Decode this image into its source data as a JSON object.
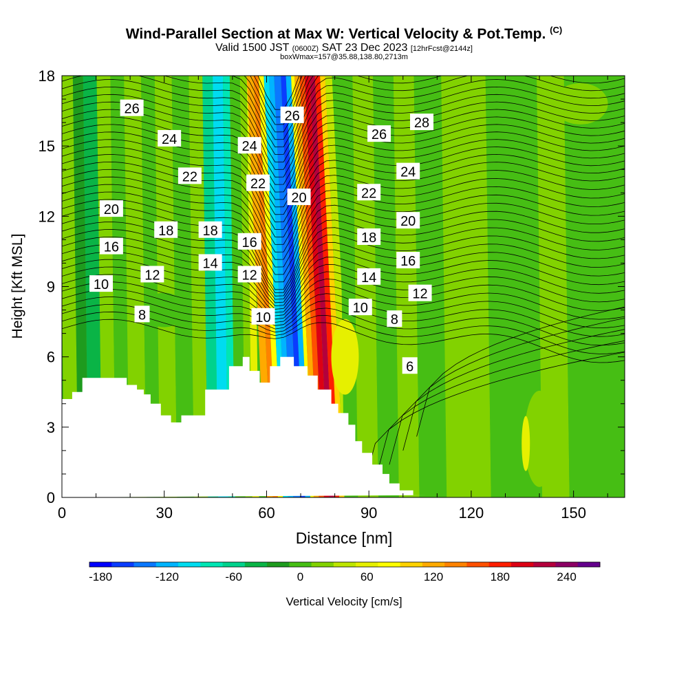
{
  "title": {
    "main": "Wind-Parallel Section at Max W: Vertical Velocity & Pot.Temp.",
    "copyright": "(C)",
    "valid_prefix": "Valid 1500 JST",
    "valid_utc": "(0600Z)",
    "valid_date": "SAT 23 Dec 2023",
    "forecast": "[12hrFcst@2144z]",
    "box_info": "boxWmax=157@35.88,138.80,2713m"
  },
  "colorbar": {
    "label": "Vertical Velocity [cm/s]",
    "tick_labels": [
      "-180",
      "-120",
      "-60",
      "0",
      "60",
      "120",
      "180",
      "240"
    ],
    "colors": [
      "#0000ff",
      "#0a3cff",
      "#0a78ff",
      "#00b4ff",
      "#00dcf0",
      "#00e6b4",
      "#00d28c",
      "#0ab446",
      "#1e9b1e",
      "#46be14",
      "#82d200",
      "#bee600",
      "#e6f000",
      "#ffff00",
      "#ffd200",
      "#ffaa00",
      "#ff8200",
      "#ff5000",
      "#ff1e00",
      "#dc0014",
      "#b4003c",
      "#8c0064",
      "#64008c"
    ]
  },
  "chart_data": {
    "type": "heatmap",
    "xlabel": "Distance [nm]",
    "ylabel": "Height [Kft MSL]",
    "xlim": [
      0,
      165
    ],
    "ylim": [
      0,
      18
    ],
    "x_ticks": [
      0,
      30,
      60,
      90,
      120,
      150
    ],
    "y_ticks": [
      0,
      3,
      6,
      9,
      12,
      15,
      18
    ],
    "fill_variable": "Vertical Velocity [cm/s]",
    "contour_variable": "Potential Temperature",
    "terrain": {
      "x": [
        0,
        3,
        3,
        6,
        6,
        8.5,
        8.5,
        19,
        19,
        22,
        22,
        24,
        24,
        26,
        26,
        29,
        29,
        32,
        32,
        35,
        35,
        42,
        42,
        49,
        49,
        53,
        53,
        55,
        55,
        58,
        58,
        61,
        61,
        64,
        64,
        68,
        68,
        72,
        72,
        75,
        75,
        79,
        79,
        81,
        81,
        84,
        84,
        86,
        86,
        88,
        88,
        91,
        91,
        94,
        94,
        96,
        96,
        99,
        99,
        103,
        103,
        107,
        107,
        165
      ],
      "y": [
        4.2,
        4.2,
        4.5,
        4.5,
        5.1,
        5.1,
        5.1,
        5.1,
        4.8,
        4.8,
        4.6,
        4.6,
        4.4,
        4.4,
        4.0,
        4.0,
        3.5,
        3.5,
        3.2,
        3.2,
        3.5,
        3.5,
        4.6,
        4.6,
        5.6,
        5.6,
        6.0,
        6.0,
        5.4,
        5.4,
        4.9,
        4.9,
        5.6,
        5.6,
        6.0,
        6.0,
        5.6,
        5.6,
        5.2,
        5.2,
        4.6,
        4.6,
        4.0,
        4.0,
        3.6,
        3.6,
        3.1,
        3.1,
        2.4,
        2.4,
        1.9,
        1.9,
        1.4,
        1.4,
        1.0,
        1.0,
        0.6,
        0.6,
        0.3,
        0.3,
        0.1,
        0.1,
        0.1
      ]
    },
    "contour_labels": [
      {
        "text": "26",
        "x": 20.5,
        "y": 16.6
      },
      {
        "text": "24",
        "x": 31.5,
        "y": 15.3
      },
      {
        "text": "22",
        "x": 37.5,
        "y": 13.7
      },
      {
        "text": "20",
        "x": 14.5,
        "y": 12.3
      },
      {
        "text": "18",
        "x": 30.5,
        "y": 11.4
      },
      {
        "text": "18",
        "x": 43.5,
        "y": 11.4
      },
      {
        "text": "16",
        "x": 14.5,
        "y": 10.7
      },
      {
        "text": "14",
        "x": 43.5,
        "y": 10.0
      },
      {
        "text": "12",
        "x": 26.5,
        "y": 9.5
      },
      {
        "text": "10",
        "x": 11.5,
        "y": 9.1
      },
      {
        "text": "8",
        "x": 23.5,
        "y": 7.8
      },
      {
        "text": "24",
        "x": 55.0,
        "y": 15.0
      },
      {
        "text": "22",
        "x": 57.5,
        "y": 13.4
      },
      {
        "text": "16",
        "x": 55.0,
        "y": 10.9
      },
      {
        "text": "12",
        "x": 55.0,
        "y": 9.5
      },
      {
        "text": "10",
        "x": 59.0,
        "y": 7.7
      },
      {
        "text": "26",
        "x": 67.5,
        "y": 16.3
      },
      {
        "text": "20",
        "x": 69.5,
        "y": 12.8
      },
      {
        "text": "28",
        "x": 105.5,
        "y": 16.0
      },
      {
        "text": "26",
        "x": 93.0,
        "y": 15.5
      },
      {
        "text": "24",
        "x": 101.5,
        "y": 13.9
      },
      {
        "text": "22",
        "x": 90.0,
        "y": 13.0
      },
      {
        "text": "20",
        "x": 101.5,
        "y": 11.8
      },
      {
        "text": "18",
        "x": 90.0,
        "y": 11.1
      },
      {
        "text": "16",
        "x": 101.5,
        "y": 10.1
      },
      {
        "text": "14",
        "x": 90.0,
        "y": 9.4
      },
      {
        "text": "12",
        "x": 105.0,
        "y": 8.7
      },
      {
        "text": "10",
        "x": 87.5,
        "y": 8.1
      },
      {
        "text": "8",
        "x": 97.5,
        "y": 7.6
      },
      {
        "text": "6",
        "x": 102.0,
        "y": 5.6
      }
    ]
  }
}
